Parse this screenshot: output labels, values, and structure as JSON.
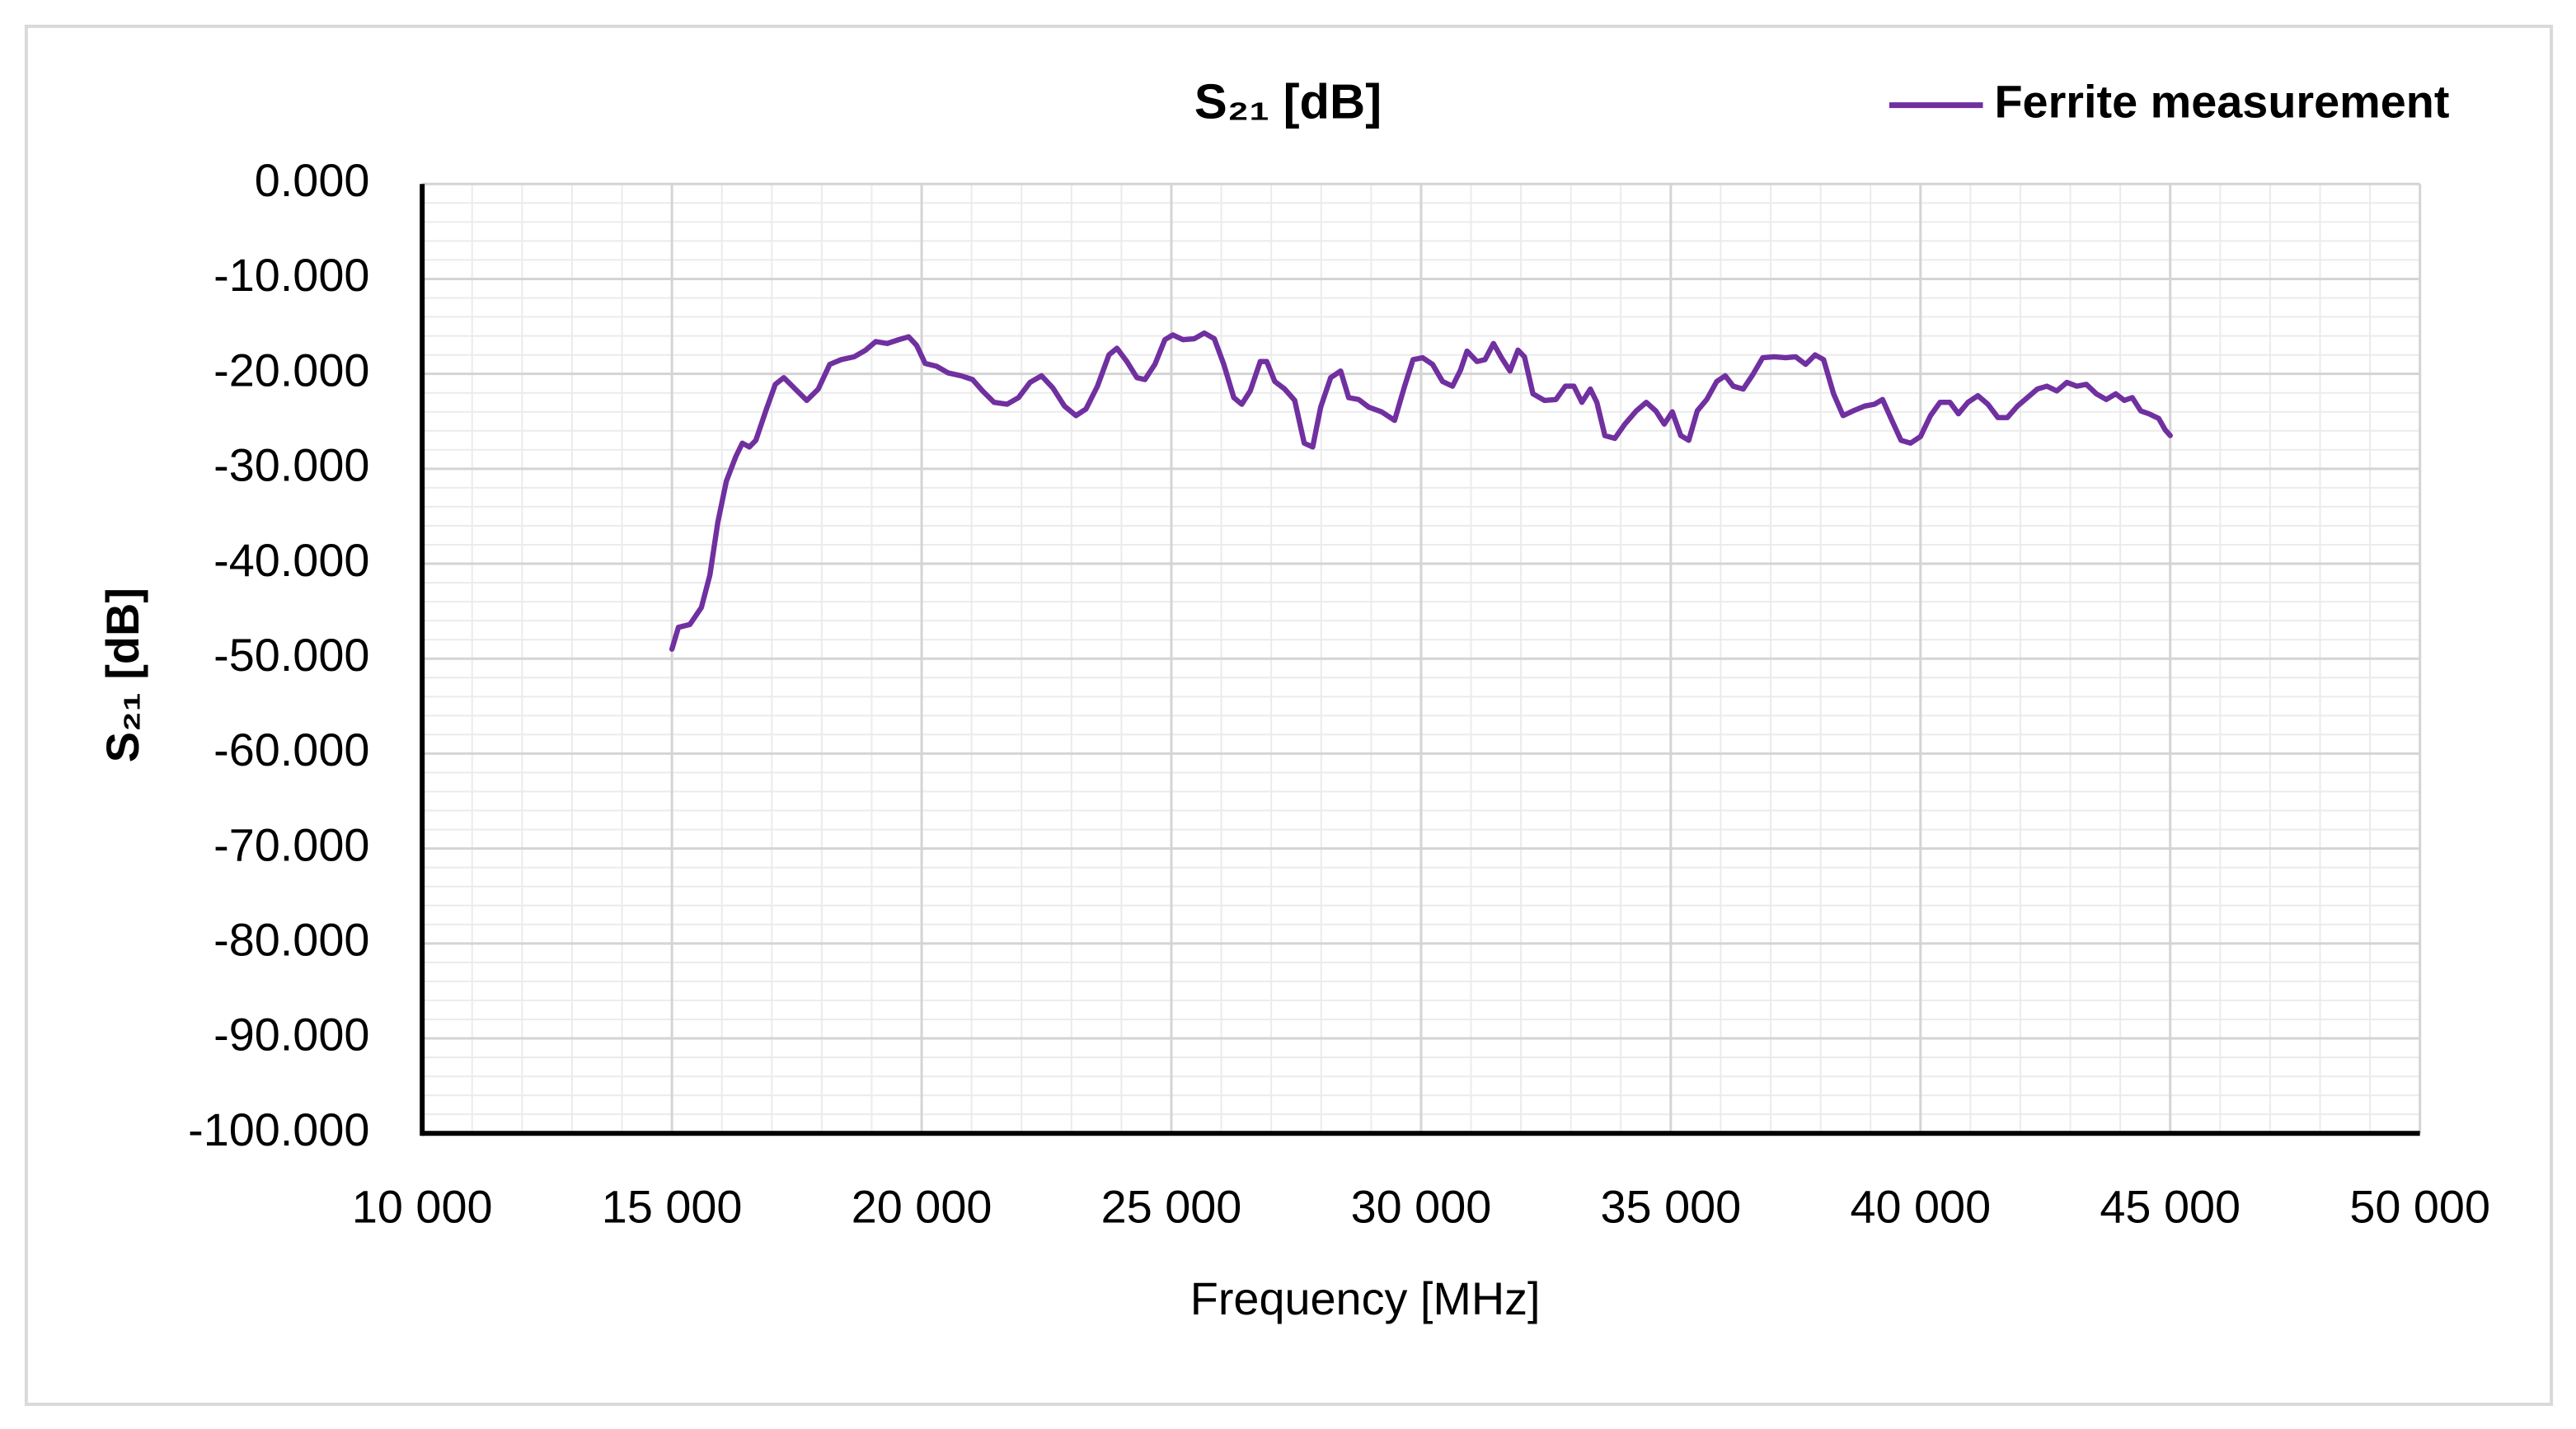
{
  "chart_data": {
    "type": "line",
    "title": "S₂₁ [dB]",
    "x_label": "Frequency [MHz]",
    "y_label": "S₂₁ [dB]",
    "xlim": [
      10000,
      50000
    ],
    "ylim": [
      -100,
      0
    ],
    "xticks": [
      {
        "value": 10000,
        "label": "10 000"
      },
      {
        "value": 15000,
        "label": "15 000"
      },
      {
        "value": 20000,
        "label": "20 000"
      },
      {
        "value": 25000,
        "label": "25 000"
      },
      {
        "value": 30000,
        "label": "30 000"
      },
      {
        "value": 35000,
        "label": "35 000"
      },
      {
        "value": 40000,
        "label": "40 000"
      },
      {
        "value": 45000,
        "label": "45 000"
      },
      {
        "value": 50000,
        "label": "50 000"
      }
    ],
    "yticks": [
      {
        "value": 0,
        "label": "0.000"
      },
      {
        "value": -10,
        "label": "-10.000"
      },
      {
        "value": -20,
        "label": "-20.000"
      },
      {
        "value": -30,
        "label": "-30.000"
      },
      {
        "value": -40,
        "label": "-40.000"
      },
      {
        "value": -50,
        "label": "-50.000"
      },
      {
        "value": -60,
        "label": "-60.000"
      },
      {
        "value": -70,
        "label": "-70.000"
      },
      {
        "value": -80,
        "label": "-80.000"
      },
      {
        "value": -90,
        "label": "-90.000"
      },
      {
        "value": -100,
        "label": "-100.000"
      }
    ],
    "grid": true,
    "minor_grid": true,
    "minor_x_divisions": 5,
    "minor_y_divisions": 5,
    "legend": "top-right",
    "x": [
      15000,
      15130,
      15360,
      15590,
      15760,
      15920,
      16090,
      16280,
      16410,
      16550,
      16680,
      16880,
      17070,
      17240,
      17470,
      17700,
      17930,
      18160,
      18390,
      18650,
      18880,
      19080,
      19310,
      19540,
      19740,
      19900,
      20070,
      20300,
      20530,
      20790,
      21020,
      21220,
      21450,
      21710,
      21940,
      22170,
      22400,
      22630,
      22860,
      23090,
      23290,
      23520,
      23750,
      23910,
      24110,
      24310,
      24470,
      24670,
      24870,
      25030,
      25230,
      25460,
      25660,
      25860,
      26050,
      26250,
      26410,
      26580,
      26780,
      26910,
      27070,
      27270,
      27470,
      27660,
      27830,
      27990,
      28190,
      28390,
      28550,
      28750,
      28950,
      29210,
      29470,
      29670,
      29840,
      30030,
      30230,
      30430,
      30630,
      30790,
      30920,
      31120,
      31280,
      31450,
      31610,
      31780,
      31940,
      32070,
      32240,
      32470,
      32700,
      32890,
      33060,
      33220,
      33390,
      33520,
      33680,
      33880,
      34080,
      34310,
      34510,
      34700,
      34870,
      35030,
      35200,
      35360,
      35530,
      35720,
      35920,
      36090,
      36250,
      36450,
      36640,
      36840,
      37070,
      37300,
      37500,
      37700,
      37890,
      38060,
      38260,
      38450,
      38650,
      38880,
      39080,
      39240,
      39410,
      39610,
      39800,
      40000,
      40200,
      40390,
      40590,
      40760,
      40950,
      41150,
      41350,
      41550,
      41740,
      41940,
      42140,
      42340,
      42530,
      42730,
      42930,
      43130,
      43320,
      43520,
      43720,
      43910,
      44080,
      44240,
      44410,
      44570,
      44770,
      44900,
      45000
    ],
    "series": [
      {
        "name": "Ferrite measurement",
        "color": "#7030a0",
        "values": [
          -49,
          -46.7,
          -46.4,
          -44.6,
          -41.2,
          -35.6,
          -31.3,
          -28.7,
          -27.3,
          -27.7,
          -27,
          -23.9,
          -21.1,
          -20.4,
          -21.6,
          -22.8,
          -21.6,
          -19,
          -18.5,
          -18.2,
          -17.5,
          -16.6,
          -16.8,
          -16.4,
          -16.1,
          -17,
          -18.9,
          -19.2,
          -19.9,
          -20.2,
          -20.6,
          -21.8,
          -23,
          -23.2,
          -22.5,
          -20.9,
          -20.2,
          -21.5,
          -23.4,
          -24.4,
          -23.7,
          -21.3,
          -18,
          -17.3,
          -18.7,
          -20.4,
          -20.6,
          -19,
          -16.4,
          -15.9,
          -16.4,
          -16.3,
          -15.7,
          -16.3,
          -19,
          -22.5,
          -23.2,
          -21.8,
          -18.7,
          -18.7,
          -20.8,
          -21.6,
          -22.8,
          -27.3,
          -27.7,
          -23.5,
          -20.4,
          -19.7,
          -22.5,
          -22.7,
          -23.5,
          -24,
          -24.9,
          -21.3,
          -18.5,
          -18.3,
          -19,
          -20.8,
          -21.3,
          -19.6,
          -17.6,
          -18.7,
          -18.5,
          -16.8,
          -18.3,
          -19.7,
          -17.5,
          -18.2,
          -22.1,
          -22.8,
          -22.7,
          -21.3,
          -21.3,
          -23,
          -21.6,
          -23,
          -26.5,
          -26.8,
          -25.3,
          -23.9,
          -23,
          -23.9,
          -25.3,
          -24,
          -26.5,
          -27,
          -23.9,
          -22.7,
          -20.8,
          -20.2,
          -21.3,
          -21.6,
          -20.1,
          -18.3,
          -18.2,
          -18.3,
          -18.2,
          -19,
          -18,
          -18.5,
          -22.1,
          -24.4,
          -23.9,
          -23.4,
          -23.2,
          -22.7,
          -24.7,
          -27,
          -27.3,
          -26.6,
          -24.4,
          -23,
          -23,
          -24.2,
          -23,
          -22.3,
          -23.2,
          -24.6,
          -24.6,
          -23.4,
          -22.5,
          -21.6,
          -21.3,
          -21.8,
          -20.9,
          -21.3,
          -21.1,
          -22.1,
          -22.7,
          -22.1,
          -22.8,
          -22.5,
          -23.9,
          -24.2,
          -24.7,
          -25.9,
          -26.5
        ]
      }
    ]
  }
}
